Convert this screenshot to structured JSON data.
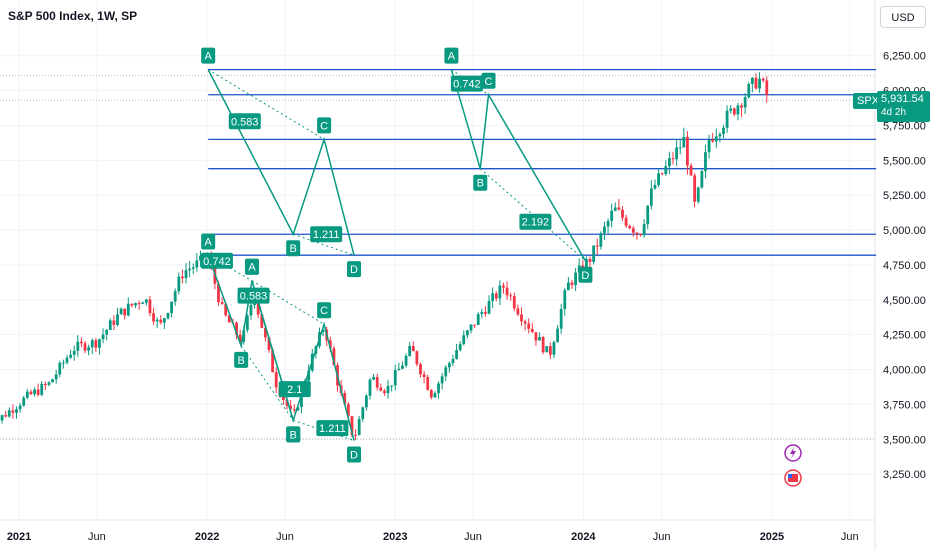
{
  "header": {
    "title": "S&P 500 Index, 1W, SP",
    "currency": "USD"
  },
  "price_tag": {
    "symbol": "SPX",
    "price": "5,931.54",
    "countdown": "4d 2h"
  },
  "colors": {
    "up": "#089981",
    "down": "#f23645",
    "pattern": "#089981",
    "level": "#1e54c8",
    "axis_text": "#131722"
  },
  "icons": [
    "lightning-icon",
    "us-flag-icon"
  ],
  "chart_data": {
    "type": "candlestick",
    "title": "S&P 500 Index, 1W, SP",
    "yaxis": {
      "ticks": [
        3250,
        3500,
        3750,
        4000,
        4250,
        4500,
        4750,
        5000,
        5250,
        5500,
        5750,
        6000,
        6250
      ],
      "tick_labels": [
        "3,250.00",
        "3,500.00",
        "3,750.00",
        "4,000.00",
        "4,250.00",
        "4,500.00",
        "4,750.00",
        "5,000.00",
        "5,250.00",
        "5,500.00",
        "5,750.00",
        "6,000.00",
        "6,250.00"
      ],
      "range": [
        3050,
        6500
      ]
    },
    "xaxis": {
      "ticks": [
        {
          "date": "2021-01-01",
          "label": "2021"
        },
        {
          "date": "2021-06-01",
          "label": "Jun"
        },
        {
          "date": "2022-01-01",
          "label": "2022"
        },
        {
          "date": "2022-06-01",
          "label": "Jun"
        },
        {
          "date": "2023-01-01",
          "label": "2023"
        },
        {
          "date": "2023-06-01",
          "label": "Jun"
        },
        {
          "date": "2024-01-01",
          "label": "2024"
        },
        {
          "date": "2024-06-01",
          "label": "Jun"
        },
        {
          "date": "2025-01-01",
          "label": "2025"
        },
        {
          "date": "2025-06-01",
          "label": "Jun"
        }
      ]
    },
    "price_path": [
      [
        "2020-11-01",
        3580
      ],
      [
        "2021-01-15",
        3800
      ],
      [
        "2021-03-01",
        3900
      ],
      [
        "2021-04-15",
        4150
      ],
      [
        "2021-06-01",
        4200
      ],
      [
        "2021-07-15",
        4400
      ],
      [
        "2021-09-01",
        4520
      ],
      [
        "2021-10-01",
        4300
      ],
      [
        "2021-11-15",
        4700
      ],
      [
        "2022-01-03",
        4800
      ],
      [
        "2022-02-01",
        4400
      ],
      [
        "2022-03-10",
        4200
      ],
      [
        "2022-04-01",
        4550
      ],
      [
        "2022-05-15",
        3900
      ],
      [
        "2022-06-17",
        3650
      ],
      [
        "2022-07-15",
        4000
      ],
      [
        "2022-08-16",
        4320
      ],
      [
        "2022-09-15",
        3850
      ],
      [
        "2022-10-13",
        3500
      ],
      [
        "2022-11-15",
        3950
      ],
      [
        "2022-12-15",
        3850
      ],
      [
        "2023-02-01",
        4150
      ],
      [
        "2023-03-13",
        3820
      ],
      [
        "2023-05-01",
        4150
      ],
      [
        "2023-06-15",
        4400
      ],
      [
        "2023-07-31",
        4600
      ],
      [
        "2023-09-01",
        4400
      ],
      [
        "2023-10-27",
        4100
      ],
      [
        "2023-12-01",
        4600
      ],
      [
        "2024-01-15",
        4800
      ],
      [
        "2024-03-01",
        5150
      ],
      [
        "2024-04-19",
        4970
      ],
      [
        "2024-05-15",
        5300
      ],
      [
        "2024-07-15",
        5650
      ],
      [
        "2024-08-05",
        5150
      ],
      [
        "2024-09-01",
        5650
      ],
      [
        "2024-10-15",
        5850
      ],
      [
        "2024-12-06",
        6090
      ],
      [
        "2024-12-27",
        5931
      ]
    ],
    "levels": [
      {
        "price": 6150
      },
      {
        "price": 5970
      },
      {
        "price": 5650
      },
      {
        "price": 5440
      },
      {
        "price": 4970
      },
      {
        "price": 4820
      }
    ],
    "patterns": [
      {
        "points": [
          {
            "label": "A",
            "date": "2022-01-03",
            "price": 4818
          },
          {
            "label": "B",
            "date": "2022-03-08",
            "price": 4170
          },
          {
            "label": "C",
            "date": "2022-03-29",
            "price": 4637
          },
          {
            "label": "D",
            "date": "2022-06-17",
            "price": 3636
          }
        ],
        "ratios": [
          {
            "value": "0.742",
            "date": "2022-01-20",
            "price": 4780
          },
          {
            "value": "2.1",
            "date": "2022-06-20",
            "price": 3860
          }
        ]
      },
      {
        "points": [
          {
            "label": "A",
            "date": "2022-03-29",
            "price": 4637
          },
          {
            "label": "B",
            "date": "2022-06-17",
            "price": 3636
          },
          {
            "label": "C",
            "date": "2022-08-16",
            "price": 4325
          },
          {
            "label": "D",
            "date": "2022-10-13",
            "price": 3491
          }
        ],
        "ratios": [
          {
            "value": "0.583",
            "date": "2022-04-01",
            "price": 4530
          },
          {
            "value": "1.211",
            "date": "2022-09-01",
            "price": 3580
          }
        ]
      },
      {
        "points": [
          {
            "label": "A",
            "date": "2022-01-03",
            "price": 6150
          },
          {
            "label": "B",
            "date": "2022-06-17",
            "price": 4970
          },
          {
            "label": "C",
            "date": "2022-08-16",
            "price": 5650
          },
          {
            "label": "D",
            "date": "2022-10-13",
            "price": 4820
          }
        ],
        "ratios": [
          {
            "value": "0.583",
            "date": "2022-03-15",
            "price": 5780
          },
          {
            "value": "1.211",
            "date": "2022-08-20",
            "price": 4970
          }
        ]
      },
      {
        "points": [
          {
            "label": "A",
            "date": "2023-04-20",
            "price": 6150
          },
          {
            "label": "B",
            "date": "2023-06-15",
            "price": 5440
          },
          {
            "label": "C",
            "date": "2023-07-01",
            "price": 5970
          },
          {
            "label": "D",
            "date": "2024-01-05",
            "price": 4780
          }
        ],
        "ratios": [
          {
            "value": "0.742",
            "date": "2023-05-20",
            "price": 6050
          },
          {
            "value": "2.192",
            "date": "2023-09-30",
            "price": 5060
          }
        ]
      }
    ]
  }
}
